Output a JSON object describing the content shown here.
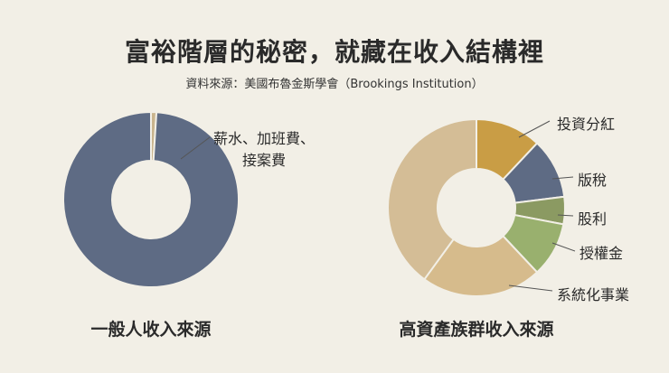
{
  "title": "富裕階層的秘密，就藏在收入結構裡",
  "source": "資料來源：美國布魯金斯學會（Brookings Institution）",
  "chart_data": [
    {
      "type": "pie",
      "caption": "一般人收入來源",
      "slices": [
        {
          "label": "",
          "value": 1,
          "color": "#c9b48d"
        },
        {
          "label": "薪水、加班費、\n接案費",
          "value": 99,
          "color": "#5e6b84"
        }
      ]
    },
    {
      "type": "pie",
      "caption": "高資產族群收入來源",
      "slices": [
        {
          "label": "投資分紅",
          "value": 12,
          "color": "#c99d45"
        },
        {
          "label": "版稅",
          "value": 11,
          "color": "#5e6b84"
        },
        {
          "label": "股利",
          "value": 5,
          "color": "#8b9a62"
        },
        {
          "label": "授權金",
          "value": 10,
          "color": "#99b06e"
        },
        {
          "label": "系統化事業",
          "value": 22,
          "color": "#d6bb8c"
        },
        {
          "label": "",
          "value": 40,
          "color": "#d4bd96"
        }
      ]
    }
  ]
}
